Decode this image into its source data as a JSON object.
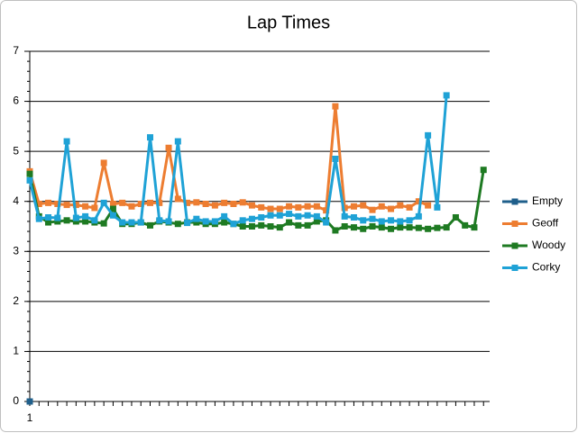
{
  "chart_data": {
    "type": "line",
    "title": "Lap Times",
    "categories": [
      "1",
      null,
      null,
      null,
      null,
      null,
      null,
      null,
      null,
      null,
      null,
      null,
      null,
      null,
      null,
      null,
      null,
      null,
      null,
      null,
      null,
      null,
      null,
      null,
      null,
      null,
      null,
      null,
      null,
      null,
      null,
      null,
      null,
      null,
      null,
      null,
      null,
      null,
      null,
      null,
      null,
      null,
      null,
      null,
      null,
      null,
      null,
      null,
      null,
      null
    ],
    "series": [
      {
        "name": "Empty",
        "color": "#1f5f8b",
        "values": [
          0,
          null,
          null,
          null,
          null,
          null,
          null,
          null,
          null,
          null,
          null,
          null,
          null,
          null,
          null,
          null,
          null,
          null,
          null,
          null,
          null,
          null,
          null,
          null,
          null,
          null,
          null,
          null,
          null,
          null,
          null,
          null,
          null,
          null,
          null,
          null,
          null,
          null,
          null,
          null,
          null,
          null,
          null,
          null,
          null,
          null,
          null,
          null,
          null,
          null
        ]
      },
      {
        "name": "Geoff",
        "color": "#ed7d31",
        "values": [
          4.6,
          3.95,
          3.97,
          3.95,
          3.93,
          3.93,
          3.9,
          3.87,
          4.77,
          3.95,
          3.97,
          3.9,
          3.95,
          3.97,
          3.97,
          5.07,
          4.05,
          3.97,
          3.98,
          3.95,
          3.92,
          3.97,
          3.95,
          3.98,
          3.92,
          3.88,
          3.85,
          3.85,
          3.9,
          3.88,
          3.9,
          3.9,
          3.82,
          5.9,
          3.87,
          3.9,
          3.92,
          3.83,
          3.9,
          3.85,
          3.92,
          3.88,
          4.0,
          3.92,
          null,
          null,
          null,
          null,
          null,
          null
        ]
      },
      {
        "name": "Woody",
        "color": "#1e7a22",
        "values": [
          4.55,
          3.7,
          3.58,
          3.6,
          3.62,
          3.6,
          3.6,
          3.58,
          3.56,
          3.85,
          3.55,
          3.55,
          3.58,
          3.52,
          3.6,
          3.58,
          3.55,
          3.58,
          3.58,
          3.55,
          3.55,
          3.58,
          3.55,
          3.5,
          3.5,
          3.52,
          3.5,
          3.48,
          3.58,
          3.52,
          3.52,
          3.6,
          3.62,
          3.42,
          3.5,
          3.48,
          3.45,
          3.5,
          3.48,
          3.45,
          3.48,
          3.48,
          3.47,
          3.45,
          3.47,
          3.48,
          3.68,
          3.52,
          3.48,
          4.63
        ]
      },
      {
        "name": "Corky",
        "color": "#1fa2d6",
        "values": [
          4.42,
          3.65,
          3.68,
          3.67,
          5.2,
          3.67,
          3.7,
          3.62,
          3.97,
          3.72,
          3.58,
          3.58,
          3.58,
          5.28,
          3.62,
          3.6,
          5.2,
          3.57,
          3.65,
          3.6,
          3.6,
          3.7,
          3.55,
          3.62,
          3.65,
          3.68,
          3.72,
          3.72,
          3.75,
          3.7,
          3.72,
          3.7,
          3.58,
          4.85,
          3.7,
          3.68,
          3.62,
          3.65,
          3.6,
          3.62,
          3.6,
          3.62,
          3.7,
          5.32,
          3.88,
          6.12,
          null,
          null,
          null,
          null
        ]
      }
    ],
    "ylim": [
      0,
      7
    ],
    "yticks": [
      0,
      1,
      2,
      3,
      4,
      5,
      6,
      7
    ],
    "grid": true,
    "legend": "right"
  }
}
